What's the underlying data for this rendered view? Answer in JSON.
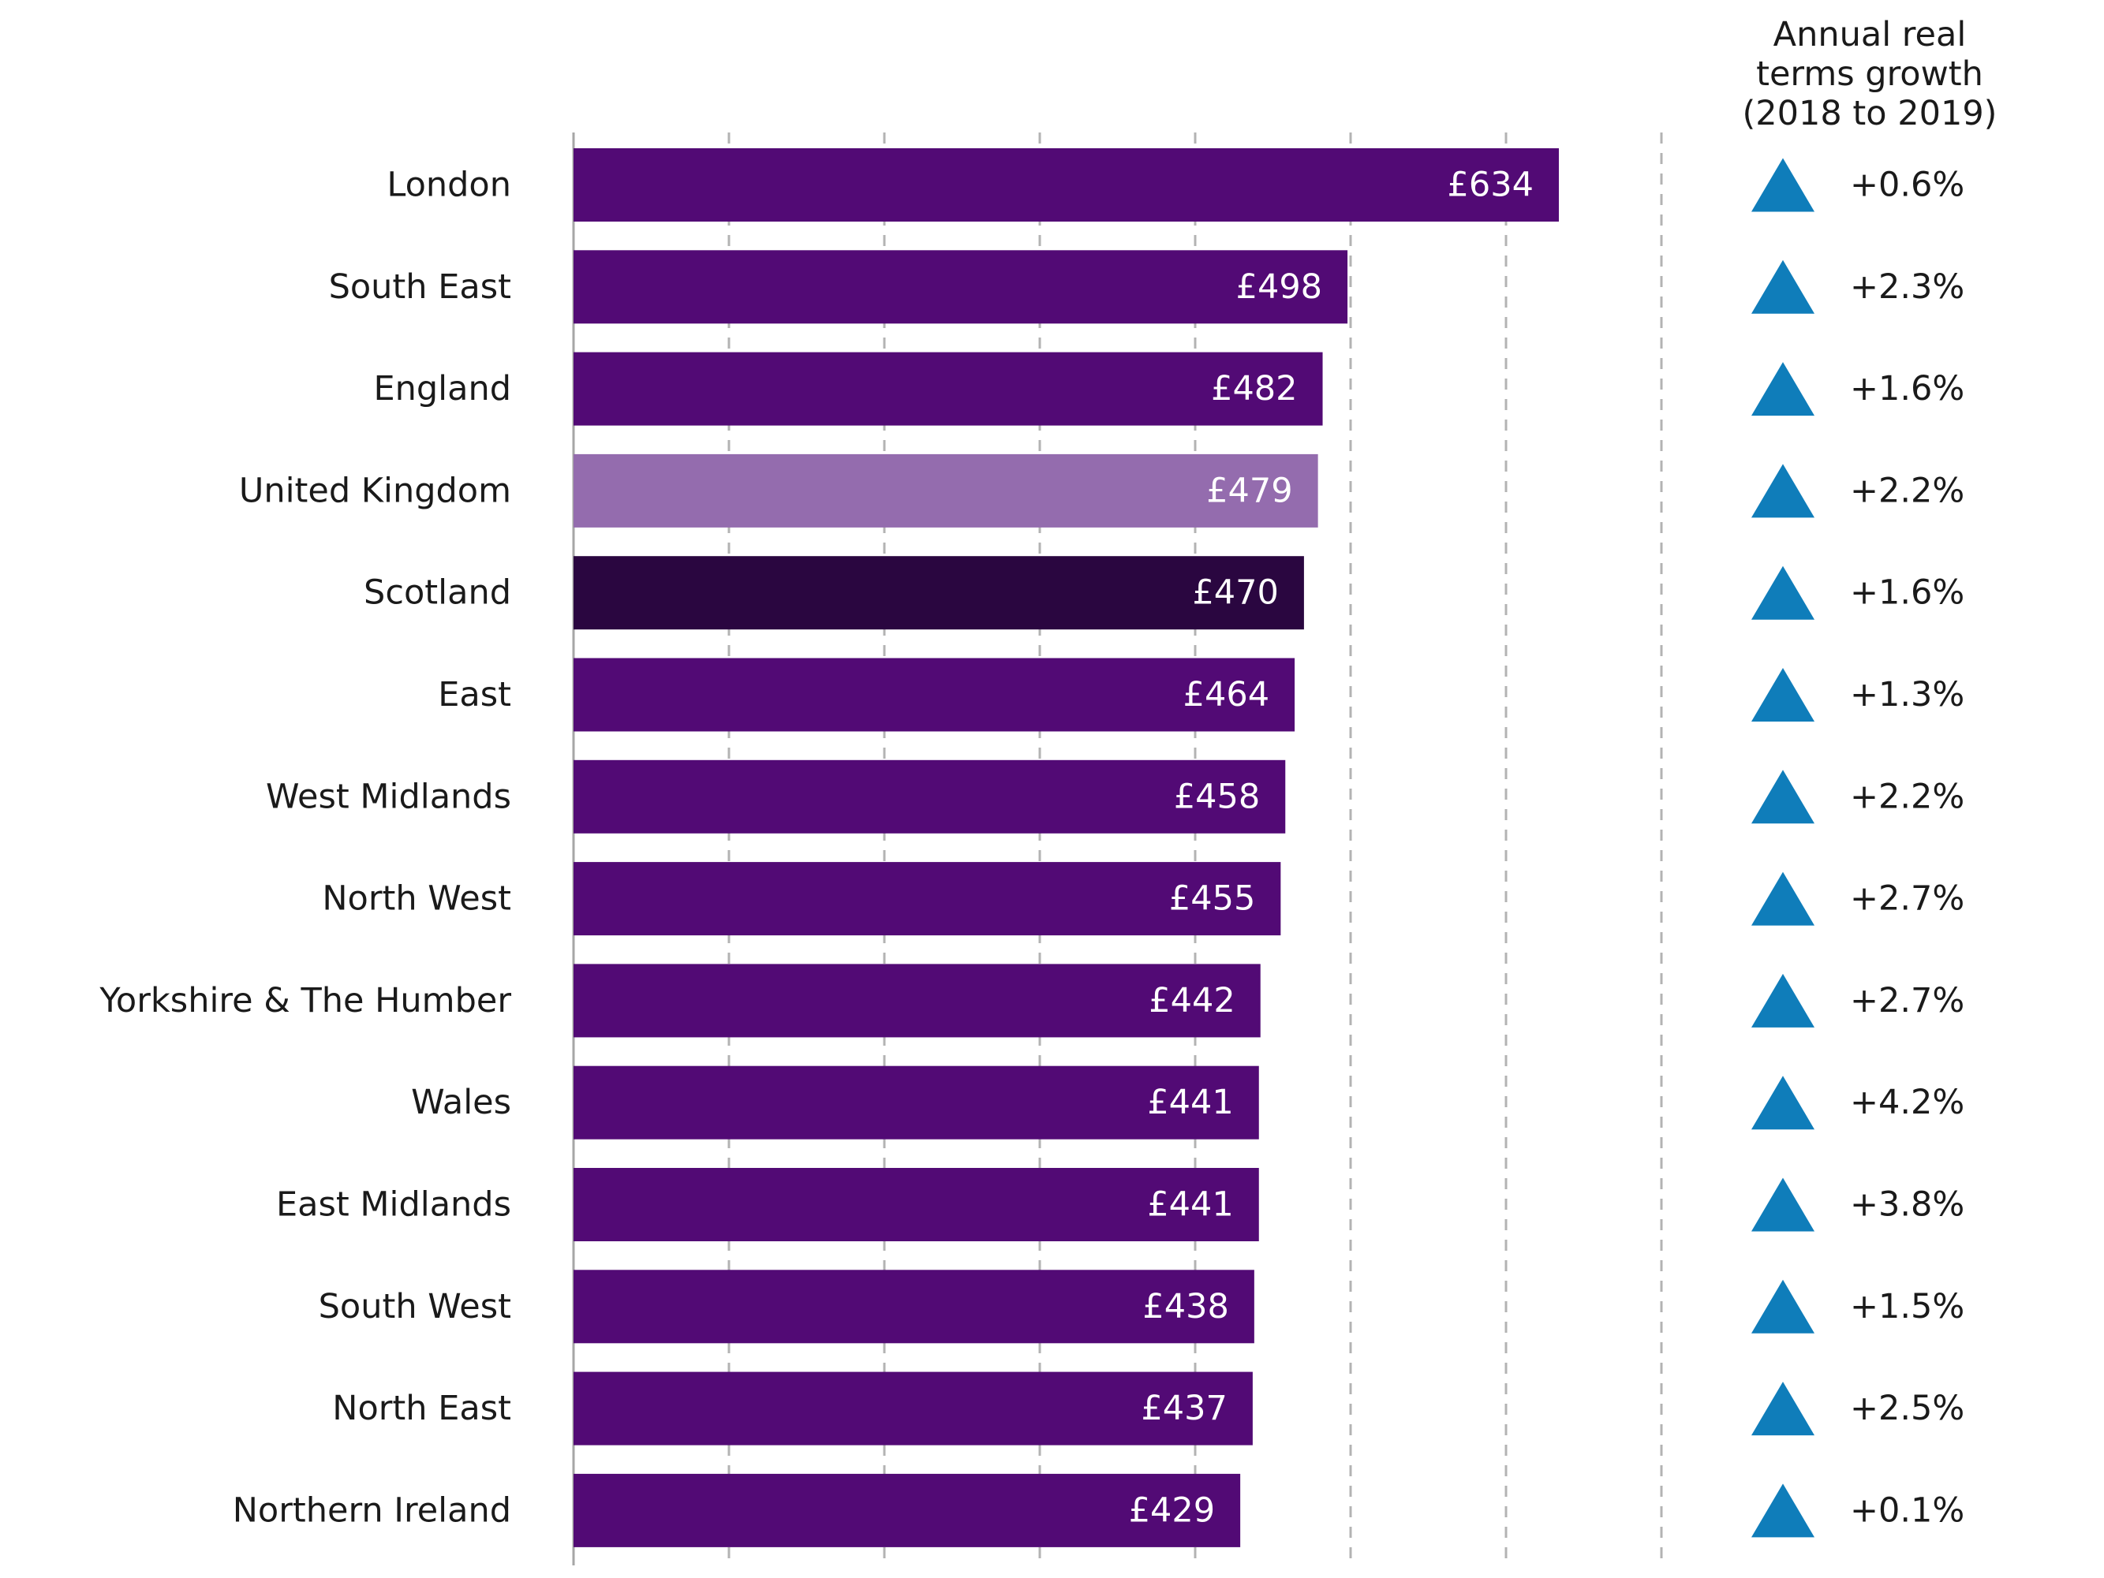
{
  "chart_data": {
    "type": "bar",
    "orientation": "horizontal",
    "categories": [
      "London",
      "South East",
      "England",
      "United Kingdom",
      "Scotland",
      "East",
      "West Midlands",
      "North West",
      "Yorkshire & The Humber",
      "Wales",
      "East Midlands",
      "South West",
      "North East",
      "Northern Ireland"
    ],
    "values": [
      634,
      498,
      482,
      479,
      470,
      464,
      458,
      455,
      442,
      441,
      441,
      438,
      437,
      429
    ],
    "value_labels": [
      "£634",
      "£498",
      "£482",
      "£479",
      "£470",
      "£464",
      "£458",
      "£455",
      "£442",
      "£441",
      "£441",
      "£438",
      "£437",
      "£429"
    ],
    "bar_colors": [
      "#520a75",
      "#520a75",
      "#520a75",
      "#946cae",
      "#2a0640",
      "#520a75",
      "#520a75",
      "#520a75",
      "#520a75",
      "#520a75",
      "#520a75",
      "#520a75",
      "#520a75",
      "#520a75"
    ],
    "growth": {
      "header": [
        "Annual real",
        "terms growth",
        "(2018 to 2019)"
      ],
      "labels": [
        "+0.6%",
        "+2.3%",
        "+1.6%",
        "+2.2%",
        "+1.6%",
        "+1.3%",
        "+2.2%",
        "+2.7%",
        "+2.7%",
        "+4.2%",
        "+3.8%",
        "+1.5%",
        "+2.5%",
        "+0.1%"
      ],
      "values": [
        0.6,
        2.3,
        1.6,
        2.2,
        1.6,
        1.3,
        2.2,
        2.7,
        2.7,
        4.2,
        3.8,
        1.5,
        2.5,
        0.1
      ],
      "direction": "up",
      "icon": "up-triangle-icon",
      "icon_color": "#0f7dba"
    },
    "xlim": [
      0,
      700
    ],
    "gridline_step": 100,
    "grid": true,
    "grid_style": "dashed vertical"
  }
}
